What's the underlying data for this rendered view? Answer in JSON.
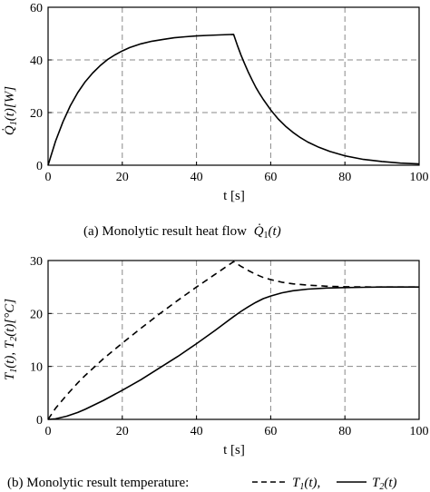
{
  "chart_data": [
    {
      "type": "line",
      "xlabel": "t [s]",
      "ylabel": "Q̇1(t)[W]",
      "xlim": [
        0,
        100
      ],
      "ylim": [
        0,
        60
      ],
      "xticks": [
        "0",
        "20",
        "40",
        "60",
        "80",
        "100"
      ],
      "yticks": [
        "0",
        "20",
        "40",
        "60"
      ],
      "grid": "dashed",
      "caption": {
        "prefix": "(a) Monolytic result heat flow",
        "symbol": "Q̇1(t)"
      },
      "series": [
        {
          "style": "solid",
          "x": [
            0,
            2,
            4,
            6,
            8,
            10,
            12,
            14,
            16,
            18,
            20,
            22,
            25,
            28,
            31,
            34,
            37,
            40,
            43,
            46,
            50,
            51,
            52,
            53,
            54,
            55,
            56,
            57,
            58,
            60,
            62,
            64,
            66,
            68,
            70,
            73,
            76,
            80,
            85,
            90,
            95,
            100
          ],
          "y": [
            0,
            9.1,
            16.5,
            22.6,
            27.6,
            31.7,
            35.0,
            37.8,
            40.1,
            41.9,
            43.4,
            44.7,
            46.1,
            47.1,
            47.8,
            48.4,
            48.8,
            49.1,
            49.3,
            49.5,
            49.7,
            45.6,
            41.8,
            38.4,
            35.2,
            32.3,
            29.6,
            27.2,
            25.0,
            21.0,
            17.6,
            14.8,
            12.5,
            10.5,
            8.8,
            6.8,
            5.2,
            3.6,
            2.2,
            1.4,
            0.8,
            0.5
          ]
        }
      ]
    },
    {
      "type": "line",
      "xlabel": "t [s]",
      "ylabel": "T1(t), T2(t)[°C]",
      "xlim": [
        0,
        100
      ],
      "ylim": [
        0,
        30
      ],
      "xticks": [
        "0",
        "20",
        "40",
        "60",
        "80",
        "100"
      ],
      "yticks": [
        "0",
        "10",
        "20",
        "30"
      ],
      "grid": "dashed",
      "caption": {
        "prefix": "(b) Monolytic result temperature:",
        "symbol1": "T1(t),",
        "symbol2": "T2(t)"
      },
      "series": [
        {
          "name": "T1(t)",
          "style": "dashed",
          "x": [
            0,
            2,
            5,
            8,
            10,
            15,
            20,
            25,
            30,
            35,
            40,
            45,
            50,
            52,
            54,
            56,
            58,
            60,
            63,
            66,
            70,
            75,
            80,
            85,
            90,
            100
          ],
          "y": [
            0,
            2.1,
            4.6,
            6.9,
            8.3,
            11.5,
            14.4,
            17.2,
            19.9,
            22.5,
            25.0,
            27.4,
            29.8,
            28.9,
            28.1,
            27.4,
            26.8,
            26.4,
            25.9,
            25.6,
            25.35,
            25.15,
            25.05,
            25.02,
            25.0,
            25.0
          ]
        },
        {
          "name": "T2(t)",
          "style": "solid",
          "x": [
            0,
            2,
            5,
            8,
            10,
            15,
            20,
            25,
            30,
            35,
            40,
            45,
            50,
            52,
            54,
            56,
            58,
            60,
            63,
            66,
            70,
            75,
            80,
            85,
            90,
            100
          ],
          "y": [
            0,
            0.1,
            0.6,
            1.3,
            1.9,
            3.6,
            5.5,
            7.5,
            9.7,
            11.9,
            14.3,
            16.8,
            19.4,
            20.4,
            21.3,
            22.1,
            22.8,
            23.3,
            23.9,
            24.3,
            24.6,
            24.8,
            24.9,
            24.95,
            25.0,
            25.0
          ]
        }
      ]
    }
  ]
}
